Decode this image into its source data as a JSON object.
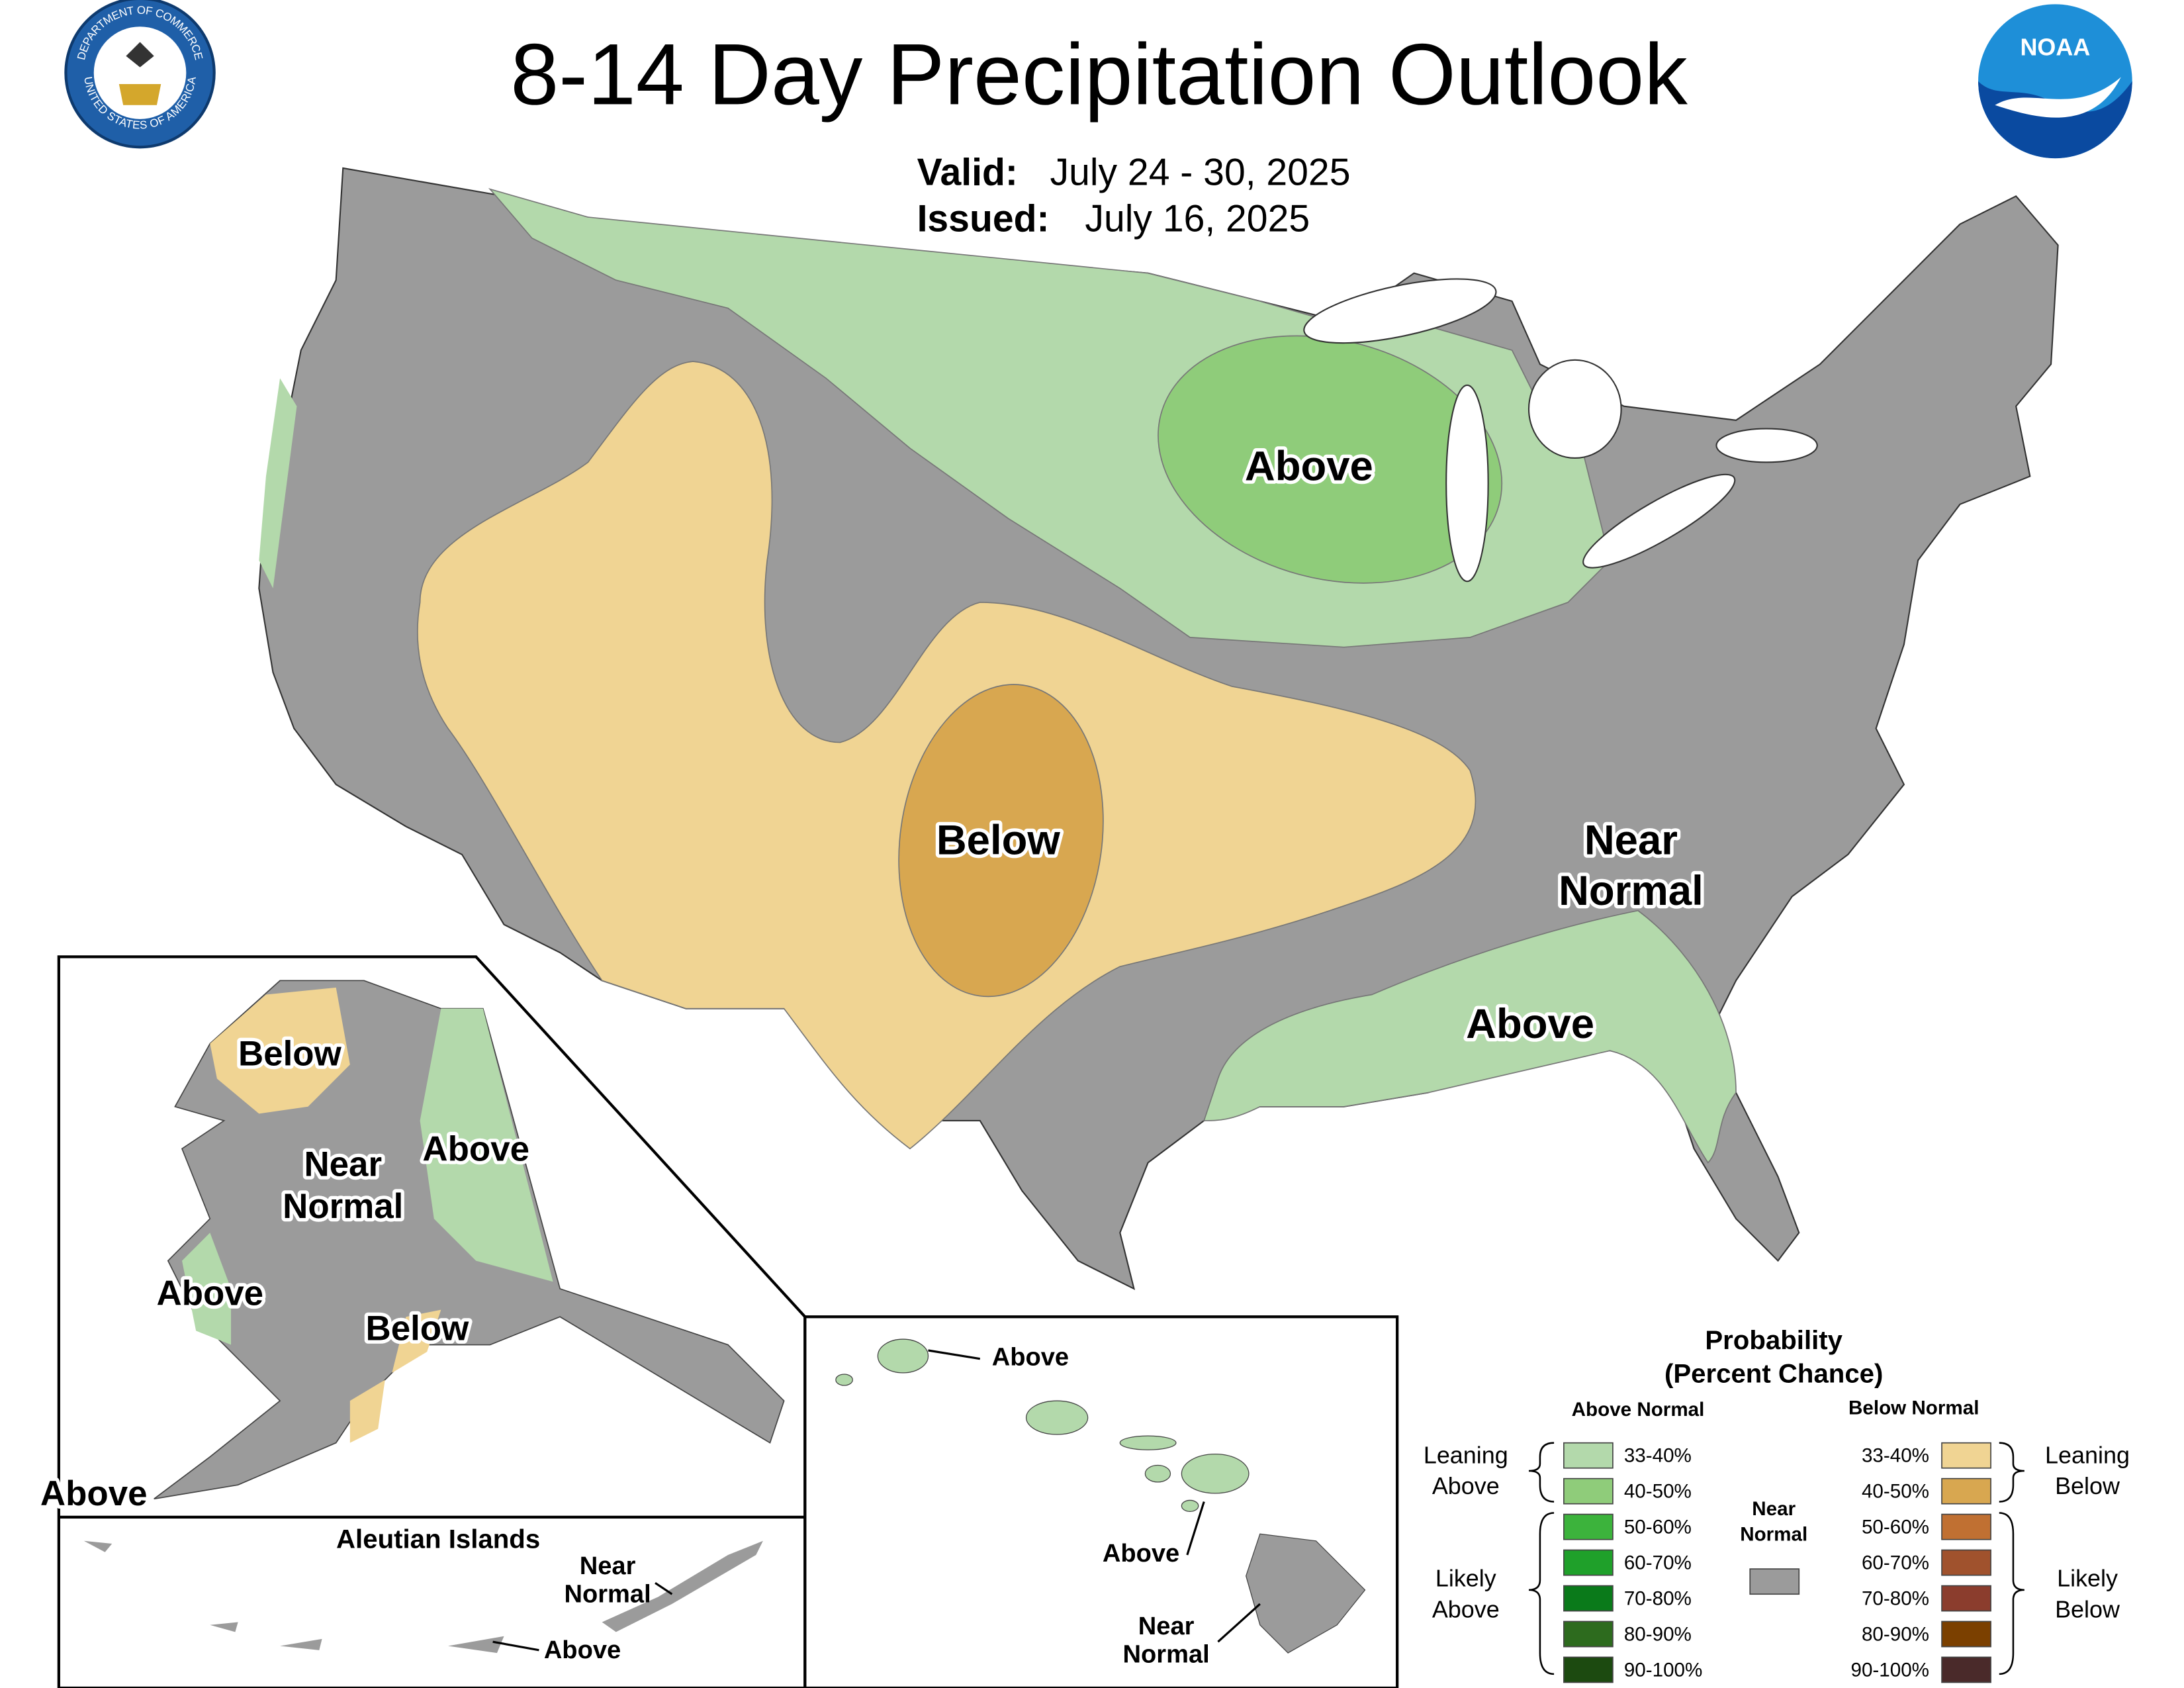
{
  "header": {
    "title": "8-14 Day Precipitation Outlook",
    "valid_label": "Valid:",
    "valid": "July 24 - 30, 2025",
    "issued_label": "Issued:",
    "issued": "July 16, 2025"
  },
  "logos": {
    "seal_top": "DEPARTMENT OF COMMERCE",
    "seal_bottom": "UNITED STATES OF AMERICA",
    "noaa": "NOAA"
  },
  "map_labels": [
    {
      "lines": [
        "Above"
      ]
    },
    {
      "lines": [
        "Below"
      ]
    },
    {
      "lines": [
        "Near",
        "Normal"
      ]
    },
    {
      "lines": [
        "Above"
      ]
    },
    {
      "lines": [
        "Below"
      ]
    },
    {
      "lines": [
        "Near",
        "Normal"
      ]
    },
    {
      "lines": [
        "Above"
      ]
    },
    {
      "lines": [
        "Above"
      ]
    },
    {
      "lines": [
        "Below"
      ]
    },
    {
      "lines": [
        "Above"
      ]
    }
  ],
  "inset_labels": {
    "aleutian_title": "Aleutian Islands",
    "aleutian_near": [
      "Near",
      "Normal"
    ],
    "aleutian_above": "Above",
    "hawaii_above_1": "Above",
    "hawaii_above_2": "Above",
    "hawaii_near": [
      "Near",
      "Normal"
    ]
  },
  "legend": {
    "title": "Probability",
    "subtitle": "(Percent Chance)",
    "above_heading": "Above Normal",
    "below_heading": "Below Normal",
    "near_normal": [
      "Near",
      "Normal"
    ],
    "near_normal_color": "#9b9b9b",
    "leaning_above": [
      "Leaning",
      "Above"
    ],
    "likely_above": [
      "Likely",
      "Above"
    ],
    "leaning_below": [
      "Leaning",
      "Below"
    ],
    "likely_below": [
      "Likely",
      "Below"
    ],
    "above": [
      {
        "label": "33-40%",
        "color": "#b3d9ab"
      },
      {
        "label": "40-50%",
        "color": "#8fcc7a"
      },
      {
        "label": "50-60%",
        "color": "#3cb33c"
      },
      {
        "label": "60-70%",
        "color": "#1fa02a"
      },
      {
        "label": "70-80%",
        "color": "#0a7a1a"
      },
      {
        "label": "80-90%",
        "color": "#2d6b1e"
      },
      {
        "label": "90-100%",
        "color": "#1c4a10"
      }
    ],
    "below": [
      {
        "label": "33-40%",
        "color": "#f0d493"
      },
      {
        "label": "40-50%",
        "color": "#d8a750"
      },
      {
        "label": "50-60%",
        "color": "#c07032"
      },
      {
        "label": "60-70%",
        "color": "#a0522d"
      },
      {
        "label": "70-80%",
        "color": "#8b3d2d"
      },
      {
        "label": "80-90%",
        "color": "#7b4000"
      },
      {
        "label": "90-100%",
        "color": "#4a2a2a"
      }
    ]
  }
}
